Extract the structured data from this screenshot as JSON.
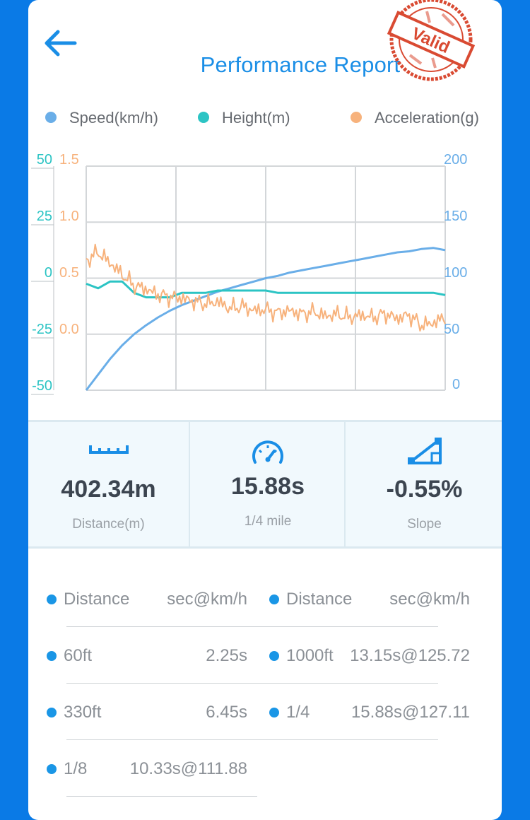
{
  "header": {
    "title": "Performance Report",
    "stamp_text": "Valid"
  },
  "legend": [
    {
      "label": "Speed(km/h)",
      "color": "#6aaee8"
    },
    {
      "label": "Height(m)",
      "color": "#2cc4c4"
    },
    {
      "label": "Acceleration(g)",
      "color": "#f7b27c"
    }
  ],
  "chart_data": {
    "type": "line",
    "title": "",
    "axes": {
      "height_left": {
        "ticks": [
          "50",
          "25",
          "0",
          "-25",
          "-50"
        ],
        "range": [
          -50,
          50
        ],
        "color": "#2cc4c4"
      },
      "accel_left": {
        "ticks": [
          "1.5",
          "1.0",
          "0.5",
          "0.0"
        ],
        "range": [
          -0.5,
          1.5
        ],
        "color": "#f7b27c"
      },
      "speed_right": {
        "ticks": [
          "200",
          "150",
          "100",
          "50",
          "0"
        ],
        "range": [
          0,
          200
        ],
        "color": "#6aaee8"
      }
    },
    "series": [
      {
        "name": "Speed(km/h)",
        "axis": "speed_right",
        "color": "#6aaee8",
        "values": [
          0,
          14,
          28,
          40,
          50,
          58,
          65,
          71,
          76,
          80,
          84,
          88,
          91,
          94,
          97,
          100,
          102,
          105,
          107,
          109,
          111,
          113,
          115,
          117,
          119,
          121,
          123,
          124,
          126,
          127,
          125
        ]
      },
      {
        "name": "Height(m)",
        "axis": "height_left",
        "color": "#2cc4c4",
        "values": [
          -2,
          -4,
          -1,
          -1,
          -6,
          -8,
          -8,
          -8,
          -6,
          -6,
          -6,
          -5,
          -5,
          -5,
          -5,
          -5,
          -6,
          -6,
          -6,
          -6,
          -6,
          -6,
          -6,
          -6,
          -6,
          -6,
          -6,
          -6,
          -6,
          -6,
          -7
        ]
      },
      {
        "name": "Acceleration(g)",
        "axis": "accel_left",
        "color": "#f7b27c",
        "values": [
          0.6,
          0.68,
          0.58,
          0.48,
          0.38,
          0.35,
          0.3,
          0.28,
          0.27,
          0.24,
          0.22,
          0.24,
          0.18,
          0.2,
          0.16,
          0.17,
          0.14,
          0.16,
          0.13,
          0.15,
          0.11,
          0.13,
          0.1,
          0.12,
          0.1,
          0.13,
          0.09,
          0.12,
          0.03,
          0.05,
          0.1
        ]
      }
    ]
  },
  "stats": [
    {
      "icon": "ruler-icon",
      "value": "402.34m",
      "label": "Distance(m)"
    },
    {
      "icon": "speedometer-icon",
      "value": "15.88s",
      "label": "1/4 mile"
    },
    {
      "icon": "slope-icon",
      "value": "-0.55%",
      "label": "Slope"
    }
  ],
  "splits": {
    "headers": [
      {
        "name": "Distance",
        "value": "sec@km/h"
      },
      {
        "name": "Distance",
        "value": "sec@km/h"
      }
    ],
    "rows": [
      [
        {
          "name": "60ft",
          "value": "2.25s"
        },
        {
          "name": "1000ft",
          "value": "13.15s@125.72"
        }
      ],
      [
        {
          "name": "330ft",
          "value": "6.45s"
        },
        {
          "name": "1/4",
          "value": "15.88s@127.11"
        }
      ],
      [
        {
          "name": "1/8",
          "value": "10.33s@111.88"
        }
      ]
    ]
  }
}
